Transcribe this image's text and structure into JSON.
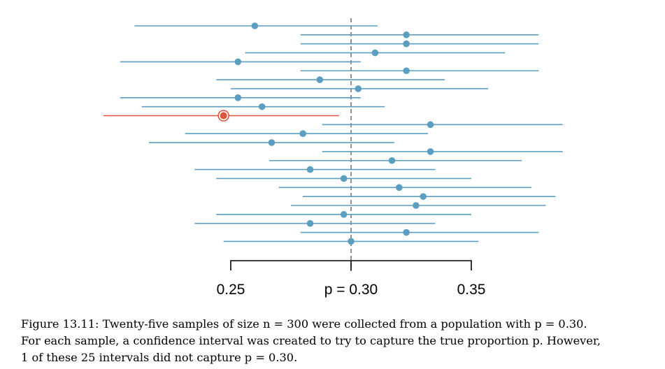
{
  "chart_data": {
    "type": "interval",
    "title": "",
    "xlabel": "",
    "ylabel": "",
    "xlim": [
      0.197,
      0.397
    ],
    "true_value": 0.3,
    "tick_labels": [
      "0.25",
      "p = 0.30",
      "0.35"
    ],
    "tick_values": [
      0.25,
      0.3,
      0.35
    ],
    "colors": {
      "captured": "#5b9fc0",
      "missed": "#e0533a",
      "reference_line": "#777777",
      "axis": "#000000"
    },
    "intervals": [
      {
        "estimate": 0.26,
        "lower": 0.21,
        "upper": 0.311,
        "captured": true
      },
      {
        "estimate": 0.323,
        "lower": 0.279,
        "upper": 0.378,
        "captured": true
      },
      {
        "estimate": 0.323,
        "lower": 0.279,
        "upper": 0.378,
        "captured": true
      },
      {
        "estimate": 0.31,
        "lower": 0.256,
        "upper": 0.364,
        "captured": true
      },
      {
        "estimate": 0.253,
        "lower": 0.204,
        "upper": 0.304,
        "captured": true
      },
      {
        "estimate": 0.323,
        "lower": 0.279,
        "upper": 0.378,
        "captured": true
      },
      {
        "estimate": 0.287,
        "lower": 0.244,
        "upper": 0.339,
        "captured": true
      },
      {
        "estimate": 0.303,
        "lower": 0.25,
        "upper": 0.357,
        "captured": true
      },
      {
        "estimate": 0.253,
        "lower": 0.204,
        "upper": 0.304,
        "captured": true
      },
      {
        "estimate": 0.263,
        "lower": 0.213,
        "upper": 0.314,
        "captured": true
      },
      {
        "estimate": 0.247,
        "lower": 0.197,
        "upper": 0.295,
        "captured": false
      },
      {
        "estimate": 0.333,
        "lower": 0.288,
        "upper": 0.388,
        "captured": true
      },
      {
        "estimate": 0.28,
        "lower": 0.231,
        "upper": 0.332,
        "captured": true
      },
      {
        "estimate": 0.267,
        "lower": 0.216,
        "upper": 0.318,
        "captured": true
      },
      {
        "estimate": 0.333,
        "lower": 0.288,
        "upper": 0.388,
        "captured": true
      },
      {
        "estimate": 0.317,
        "lower": 0.266,
        "upper": 0.371,
        "captured": true
      },
      {
        "estimate": 0.283,
        "lower": 0.235,
        "upper": 0.335,
        "captured": true
      },
      {
        "estimate": 0.297,
        "lower": 0.244,
        "upper": 0.35,
        "captured": true
      },
      {
        "estimate": 0.32,
        "lower": 0.27,
        "upper": 0.375,
        "captured": true
      },
      {
        "estimate": 0.33,
        "lower": 0.28,
        "upper": 0.385,
        "captured": true
      },
      {
        "estimate": 0.327,
        "lower": 0.275,
        "upper": 0.381,
        "captured": true
      },
      {
        "estimate": 0.297,
        "lower": 0.244,
        "upper": 0.35,
        "captured": true
      },
      {
        "estimate": 0.283,
        "lower": 0.235,
        "upper": 0.335,
        "captured": true
      },
      {
        "estimate": 0.323,
        "lower": 0.279,
        "upper": 0.378,
        "captured": true
      },
      {
        "estimate": 0.3,
        "lower": 0.247,
        "upper": 0.353,
        "captured": true
      }
    ]
  },
  "caption": {
    "line1": "Figure 13.11: Twenty-five samples of size n = 300 were collected from a population with p = 0.30.",
    "line2": "For each sample, a confidence interval was created to try to capture the true proportion p. However,",
    "line3": "1 of these 25 intervals did not capture p = 0.30."
  }
}
